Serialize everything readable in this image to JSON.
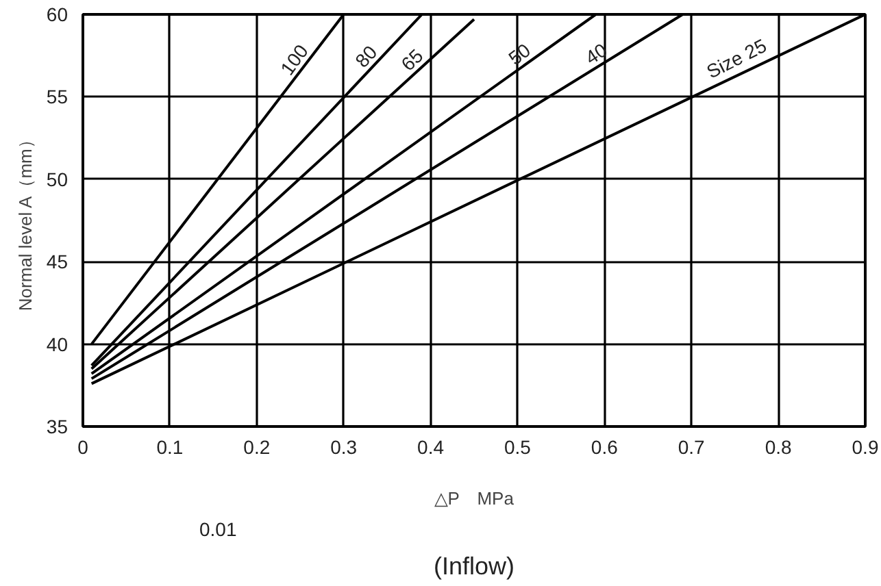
{
  "chart_data": {
    "type": "line",
    "title": "(Inflow)",
    "xlabel": "△P　MPa",
    "ylabel": "Normal level A（mm）",
    "xlim": [
      0,
      0.9
    ],
    "ylim": [
      35,
      60
    ],
    "xticks": [
      0,
      0.1,
      0.2,
      0.3,
      0.4,
      0.5,
      0.6,
      0.7,
      0.8,
      0.9
    ],
    "yticks": [
      35,
      40,
      45,
      50,
      55,
      60
    ],
    "grid": true,
    "marker": "none",
    "line_style": "solid",
    "annotations": [
      "0.01"
    ],
    "series": [
      {
        "name": "100",
        "color": "#000000",
        "x": [
          0.01,
          0.3
        ],
        "values": [
          40.0,
          60
        ]
      },
      {
        "name": "80",
        "color": "#000000",
        "x": [
          0.01,
          0.39
        ],
        "values": [
          38.7,
          60
        ]
      },
      {
        "name": "65",
        "color": "#000000",
        "x": [
          0.01,
          0.45
        ],
        "values": [
          38.5,
          59.7
        ]
      },
      {
        "name": "50",
        "color": "#000000",
        "x": [
          0.01,
          0.59
        ],
        "values": [
          38.2,
          60
        ]
      },
      {
        "name": "40",
        "color": "#000000",
        "x": [
          0.01,
          0.69
        ],
        "values": [
          37.9,
          60
        ]
      },
      {
        "name": "Size 25",
        "color": "#000000",
        "x": [
          0.01,
          0.9
        ],
        "values": [
          37.6,
          60
        ]
      }
    ]
  }
}
